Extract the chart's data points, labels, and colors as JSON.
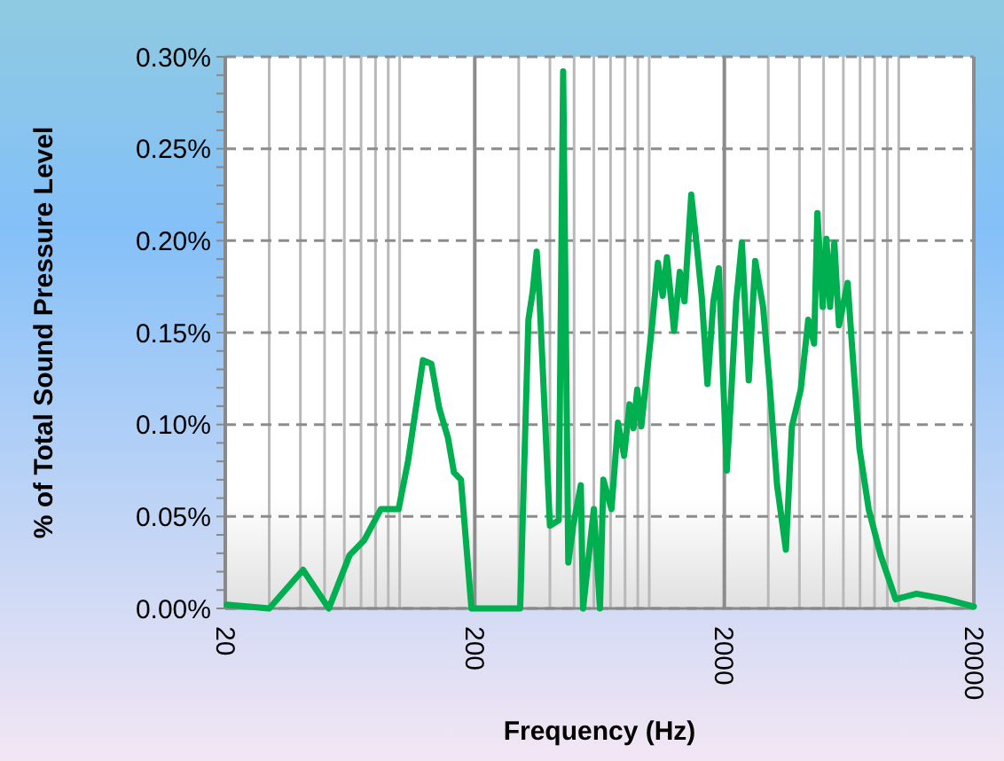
{
  "chart_data": {
    "type": "line",
    "xlabel": "Frequency (Hz)",
    "ylabel": "% of Total Sound Pressure Level",
    "log": "x",
    "grid": true,
    "marker": "none",
    "line_style": "solid",
    "xlim": [
      20,
      20000
    ],
    "xticks": [
      20,
      200,
      2000,
      20000
    ],
    "ylim": [
      0,
      0.3
    ],
    "yticks": [
      {
        "value": 0,
        "label": "0.00%"
      },
      {
        "value": 0.05,
        "label": "0.05%"
      },
      {
        "value": 0.1,
        "label": "0.10%"
      },
      {
        "value": 0.15,
        "label": "0.15%"
      },
      {
        "value": 0.2,
        "label": "0.20%"
      },
      {
        "value": 0.25,
        "label": "0.25%"
      },
      {
        "value": 0.3,
        "label": "0.30%"
      }
    ],
    "series": [
      {
        "color": "#00b050",
        "x": [
          20.3,
          30,
          41,
          52,
          63,
          72,
          84,
          99,
          108,
          124,
          134,
          144,
          156,
          165,
          176,
          194,
          304,
          328,
          341,
          354,
          363,
          400,
          434,
          452,
          474,
          496,
          532,
          543,
          600,
          635,
          655,
          706,
          750,
          793,
          834,
          865,
          895,
          930,
          1027,
          1084,
          1132,
          1178,
          1258,
          1326,
          1385,
          1474,
          1554,
          1623,
          1712,
          1808,
          1900,
          2046,
          2100,
          2232,
          2352,
          2506,
          2660,
          2860,
          3050,
          3254,
          3530,
          3732,
          4048,
          4340,
          4580,
          4720,
          4960,
          5130,
          5310,
          5520,
          5760,
          6240,
          6490,
          6960,
          7580,
          8460,
          9720,
          11780,
          15480,
          20000
        ],
        "values": [
          0.002,
          0,
          0.021,
          0,
          0.029,
          0.037,
          0.054,
          0.054,
          0.08,
          0.135,
          0.133,
          0.109,
          0.093,
          0.074,
          0.07,
          0,
          0,
          0.157,
          0.172,
          0.194,
          0.17,
          0.045,
          0.048,
          0.292,
          0.025,
          0.045,
          0.067,
          0,
          0.054,
          0,
          0.07,
          0.054,
          0.101,
          0.083,
          0.111,
          0.098,
          0.119,
          0.099,
          0.154,
          0.188,
          0.17,
          0.191,
          0.151,
          0.183,
          0.167,
          0.225,
          0.196,
          0.17,
          0.122,
          0.167,
          0.185,
          0.075,
          0.101,
          0.167,
          0.199,
          0.124,
          0.189,
          0.164,
          0.119,
          0.067,
          0.032,
          0.099,
          0.119,
          0.157,
          0.144,
          0.215,
          0.164,
          0.201,
          0.164,
          0.199,
          0.154,
          0.177,
          0.144,
          0.087,
          0.054,
          0.029,
          0.005,
          0.008,
          0.005,
          0.001
        ]
      }
    ]
  }
}
